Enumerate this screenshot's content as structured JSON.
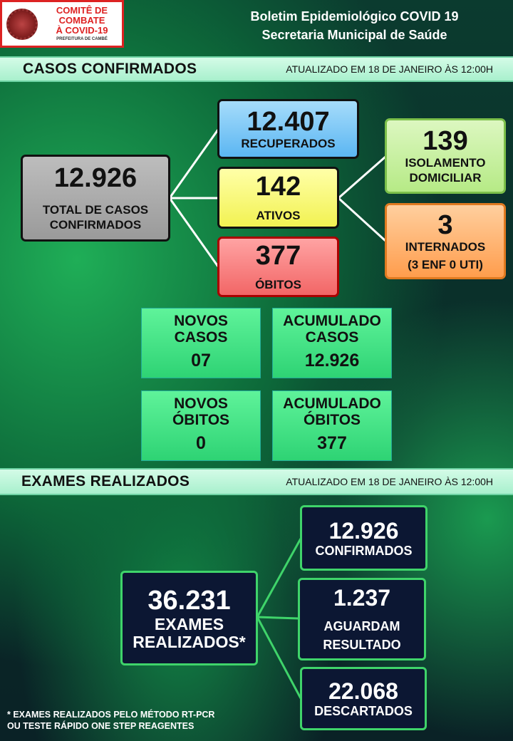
{
  "header": {
    "logo": {
      "line1": "COMITÊ DE COMBATE",
      "line2": "À COVID-19",
      "line3": "PREFEITURA DE CAMBÉ"
    },
    "title_line1": "Boletim Epidemiológico COVID 19",
    "title_line2": "Secretaria Municipal de Saúde"
  },
  "casos": {
    "heading": "CASOS CONFIRMADOS",
    "updated": "ATUALIZADO EM  18 DE JANEIRO ÀS 12:00H",
    "total": {
      "value": "12.926",
      "label1": "TOTAL DE CASOS",
      "label2": "CONFIRMADOS"
    },
    "recuperados": {
      "value": "12.407",
      "label": "RECUPERADOS"
    },
    "ativos": {
      "value": "142",
      "label": "ATIVOS"
    },
    "obitos": {
      "value": "377",
      "label": "ÓBITOS"
    },
    "isolamento": {
      "value": "139",
      "label1": "ISOLAMENTO",
      "label2": "DOMICILIAR"
    },
    "internados": {
      "value": "3",
      "label": "INTERNADOS",
      "detail": "(3 ENF 0 UTI)"
    },
    "tiles": [
      {
        "label1": "NOVOS",
        "label2": "CASOS",
        "value": "07"
      },
      {
        "label1": "ACUMULADO",
        "label2": "CASOS",
        "value": "12.926"
      },
      {
        "label1": "NOVOS",
        "label2": "ÓBITOS",
        "value": "0"
      },
      {
        "label1": "ACUMULADO",
        "label2": "ÓBITOS",
        "value": "377"
      }
    ]
  },
  "exames": {
    "heading": "EXAMES REALIZADOS",
    "updated": "ATUALIZADO EM  18 DE JANEIRO ÀS 12:00H",
    "total": {
      "value": "36.231",
      "label1": "EXAMES",
      "label2": "REALIZADOS*"
    },
    "confirmados": {
      "value": "12.926",
      "label": "CONFIRMADOS"
    },
    "aguardam": {
      "value": "1.237",
      "label1": "AGUARDAM",
      "label2": "RESULTADO"
    },
    "descartados": {
      "value": "22.068",
      "label": "DESCARTADOS"
    },
    "footnote1": "* EXAMES REALIZADOS PELO MÉTODO RT-PCR",
    "footnote2": "OU TESTE RÁPIDO ONE STEP REAGENTES"
  },
  "colors": {
    "recuperados": "#7ec8f7",
    "ativos": "#fbfb7a",
    "obitos": "#f77a7a",
    "isolamento": "#c9f1a2",
    "internados": "#ffb46e",
    "total": "#a9a9a9",
    "tile": "#3fe07f",
    "exam_box": "#0c1733",
    "exam_border": "#3fd46a"
  }
}
